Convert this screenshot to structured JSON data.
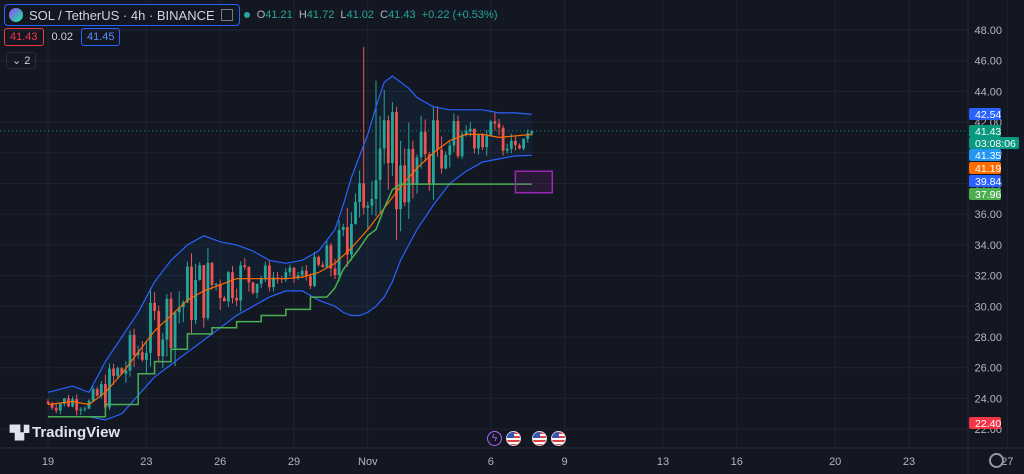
{
  "header": {
    "symbol": "SOL / TetherUS · 4h · BINANCE",
    "ohlc": [
      {
        "k": "O",
        "v": "41.21"
      },
      {
        "k": "H",
        "v": "41.72"
      },
      {
        "k": "L",
        "v": "41.02"
      },
      {
        "k": "C",
        "v": "41.43"
      }
    ],
    "change": "+0.22 (+0.53%)"
  },
  "trade": {
    "sell": "41.43",
    "spread": "0.02",
    "buy": "41.45"
  },
  "indicators_count": "2",
  "brand": "TradingView",
  "colors": {
    "background": "#131722",
    "grid": "#1f2330",
    "up": "#26a69a",
    "down": "#ef5350",
    "bb": "#2962ff",
    "basis": "#ff6d00",
    "trail": "#4caf50",
    "box": "#9c27b0"
  },
  "chart_data": {
    "type": "candlestick",
    "symbol": "SOL/USDT",
    "interval": "4h",
    "exchange": "BINANCE",
    "ylim": [
      22,
      49
    ],
    "y_ticks": [
      "22.00",
      "24.00",
      "26.00",
      "28.00",
      "30.00",
      "32.00",
      "34.00",
      "36.00",
      "38.00",
      "40.00",
      "42.00",
      "44.00",
      "46.00",
      "48.00"
    ],
    "x_ticks": [
      "19",
      "23",
      "26",
      "29",
      "Nov",
      "6",
      "9",
      "13",
      "16",
      "20",
      "23",
      "27"
    ],
    "x_tick_index": [
      0,
      24,
      42,
      60,
      78,
      108,
      126,
      150,
      168,
      192,
      210,
      234
    ],
    "last_index": 118,
    "bb_upper": [
      [
        0,
        24.4
      ],
      [
        6,
        24.8
      ],
      [
        10,
        24.4
      ],
      [
        14,
        26.4
      ],
      [
        18,
        28.0
      ],
      [
        22,
        29.6
      ],
      [
        26,
        31.6
      ],
      [
        30,
        33.0
      ],
      [
        34,
        34.0
      ],
      [
        38,
        34.6
      ],
      [
        42,
        34.2
      ],
      [
        46,
        34.0
      ],
      [
        50,
        33.6
      ],
      [
        54,
        33.0
      ],
      [
        58,
        32.8
      ],
      [
        62,
        33.0
      ],
      [
        66,
        33.6
      ],
      [
        70,
        35.0
      ],
      [
        72,
        36.6
      ],
      [
        74,
        38.4
      ],
      [
        76,
        39.8
      ],
      [
        78,
        41.2
      ],
      [
        80,
        43.0
      ],
      [
        82,
        44.6
      ],
      [
        84,
        45.0
      ],
      [
        86,
        44.6
      ],
      [
        88,
        44.2
      ],
      [
        90,
        43.6
      ],
      [
        94,
        43.0
      ],
      [
        98,
        42.8
      ],
      [
        102,
        42.8
      ],
      [
        106,
        42.8
      ],
      [
        110,
        42.6
      ],
      [
        114,
        42.6
      ],
      [
        118,
        42.5
      ]
    ],
    "bb_basis": [
      [
        0,
        23.6
      ],
      [
        6,
        23.8
      ],
      [
        10,
        23.6
      ],
      [
        14,
        24.4
      ],
      [
        18,
        25.6
      ],
      [
        22,
        27.0
      ],
      [
        26,
        28.4
      ],
      [
        30,
        29.4
      ],
      [
        34,
        30.4
      ],
      [
        38,
        31.0
      ],
      [
        42,
        31.4
      ],
      [
        46,
        31.8
      ],
      [
        50,
        31.8
      ],
      [
        54,
        31.8
      ],
      [
        58,
        31.8
      ],
      [
        62,
        31.9
      ],
      [
        66,
        32.2
      ],
      [
        70,
        32.8
      ],
      [
        74,
        33.8
      ],
      [
        78,
        35.0
      ],
      [
        82,
        36.4
      ],
      [
        86,
        37.8
      ],
      [
        90,
        39.0
      ],
      [
        94,
        40.0
      ],
      [
        98,
        40.8
      ],
      [
        102,
        41.2
      ],
      [
        106,
        41.2
      ],
      [
        110,
        41.0
      ],
      [
        114,
        41.1
      ],
      [
        118,
        41.2
      ]
    ],
    "bb_lower": [
      [
        0,
        22.8
      ],
      [
        6,
        22.8
      ],
      [
        10,
        22.8
      ],
      [
        14,
        22.6
      ],
      [
        18,
        23.0
      ],
      [
        22,
        24.2
      ],
      [
        26,
        25.4
      ],
      [
        30,
        26.2
      ],
      [
        34,
        27.0
      ],
      [
        38,
        27.8
      ],
      [
        42,
        28.6
      ],
      [
        46,
        29.4
      ],
      [
        50,
        30.0
      ],
      [
        54,
        30.6
      ],
      [
        58,
        31.0
      ],
      [
        62,
        31.0
      ],
      [
        66,
        30.4
      ],
      [
        70,
        30.0
      ],
      [
        72,
        29.6
      ],
      [
        74,
        29.4
      ],
      [
        76,
        29.4
      ],
      [
        78,
        29.6
      ],
      [
        80,
        30.0
      ],
      [
        82,
        30.6
      ],
      [
        84,
        31.6
      ],
      [
        86,
        33.0
      ],
      [
        90,
        35.0
      ],
      [
        94,
        36.6
      ],
      [
        98,
        38.0
      ],
      [
        102,
        38.8
      ],
      [
        106,
        39.4
      ],
      [
        110,
        39.6
      ],
      [
        114,
        39.8
      ],
      [
        118,
        39.84
      ]
    ],
    "trail_stop": [
      [
        0,
        22.8
      ],
      [
        14,
        22.8
      ],
      [
        14,
        23.6
      ],
      [
        22,
        23.6
      ],
      [
        22,
        25.6
      ],
      [
        26,
        25.6
      ],
      [
        26,
        26.4
      ],
      [
        30,
        26.4
      ],
      [
        30,
        27.2
      ],
      [
        34,
        27.2
      ],
      [
        34,
        28.2
      ],
      [
        40,
        28.2
      ],
      [
        40,
        28.6
      ],
      [
        46,
        28.6
      ],
      [
        46,
        29.0
      ],
      [
        52,
        29.0
      ],
      [
        52,
        29.4
      ],
      [
        58,
        29.4
      ],
      [
        58,
        29.8
      ],
      [
        64,
        29.8
      ],
      [
        64,
        30.6
      ],
      [
        68,
        30.6
      ],
      [
        70,
        31.2
      ],
      [
        72,
        32.4
      ],
      [
        76,
        33.8
      ],
      [
        78,
        34.6
      ],
      [
        80,
        35.0
      ],
      [
        82,
        36.4
      ],
      [
        84,
        37.6
      ],
      [
        86,
        37.96
      ],
      [
        118,
        37.96
      ]
    ],
    "box": {
      "x0": 114,
      "x1": 123,
      "y_top": 38.8,
      "y_bottom": 37.4
    },
    "price_labels": [
      {
        "label": "42.54",
        "value": 42.54,
        "color": "#2962ff"
      },
      {
        "label": "41.43",
        "value": 41.43,
        "color": "#089981"
      },
      {
        "label": "03:08:06",
        "value": null,
        "color": "#089981"
      },
      {
        "label": "41.35",
        "value": 41.35,
        "color": "#2196f3"
      },
      {
        "label": "41.19",
        "value": 41.19,
        "color": "#ff6d00"
      },
      {
        "label": "39.84",
        "value": 39.84,
        "color": "#2962ff"
      },
      {
        "label": "37.96",
        "value": 37.96,
        "color": "#4caf50"
      },
      {
        "label": "22.40",
        "value": 22.4,
        "color": "#f23645"
      }
    ],
    "events": [
      "bolt",
      "flag",
      "flag",
      "flag"
    ]
  }
}
